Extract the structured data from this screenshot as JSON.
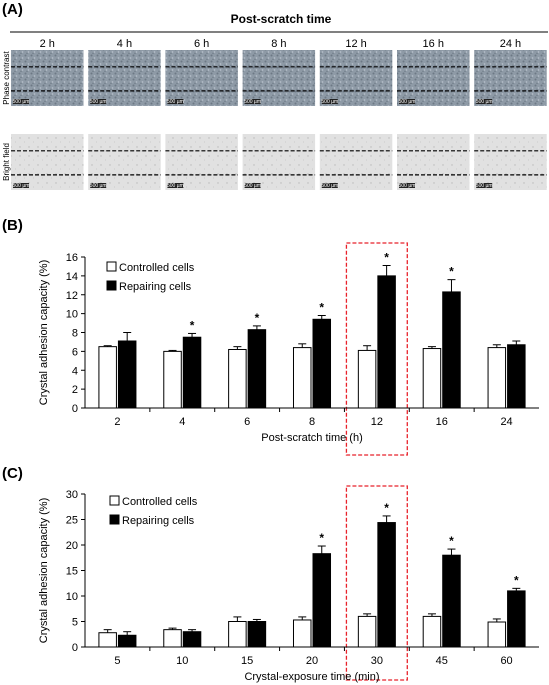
{
  "panel_a": {
    "letter": "(A)",
    "title": "Post-scratch time",
    "columns": [
      "2 h",
      "4 h",
      "6 h",
      "8 h",
      "12 h",
      "16 h",
      "24 h"
    ],
    "rows": [
      "Phase contrast",
      "Bright field"
    ],
    "scale_bar": "500 µm"
  },
  "chart_data": [
    {
      "panel": "(B)",
      "type": "bar",
      "categories": [
        "2",
        "4",
        "6",
        "8",
        "12",
        "16",
        "24"
      ],
      "series": [
        {
          "name": "Controlled cells",
          "color": "#ffffff",
          "values": [
            6.5,
            6.0,
            6.2,
            6.4,
            6.1,
            6.3,
            6.4
          ],
          "errors": [
            0.1,
            0.1,
            0.3,
            0.4,
            0.5,
            0.2,
            0.3
          ]
        },
        {
          "name": "Repairing cells",
          "color": "#000000",
          "values": [
            7.1,
            7.5,
            8.3,
            9.4,
            14.0,
            12.3,
            6.7
          ],
          "errors": [
            0.9,
            0.4,
            0.4,
            0.4,
            1.1,
            1.3,
            0.4
          ]
        }
      ],
      "significant": [
        false,
        true,
        true,
        true,
        true,
        true,
        false
      ],
      "star_symbol": "*",
      "highlight_category": "12",
      "xlabel": "Post-scratch time (h)",
      "ylabel": "Crystal adhesion capacity (%)",
      "ylim": [
        0,
        16
      ],
      "yticks": [
        0,
        2,
        4,
        6,
        8,
        10,
        12,
        14,
        16
      ],
      "grid": false,
      "legend_position": "top-left"
    },
    {
      "panel": "(C)",
      "type": "bar",
      "categories": [
        "5",
        "10",
        "15",
        "20",
        "30",
        "45",
        "60"
      ],
      "series": [
        {
          "name": "Controlled cells",
          "color": "#ffffff",
          "values": [
            2.8,
            3.4,
            5.0,
            5.3,
            6.0,
            6.0,
            4.9
          ],
          "errors": [
            0.6,
            0.3,
            0.9,
            0.6,
            0.5,
            0.5,
            0.6
          ]
        },
        {
          "name": "Repairing cells",
          "color": "#000000",
          "values": [
            2.3,
            3.0,
            5.0,
            18.3,
            24.4,
            18.0,
            11.0
          ],
          "errors": [
            0.7,
            0.4,
            0.4,
            1.5,
            1.3,
            1.2,
            0.5
          ]
        }
      ],
      "significant": [
        false,
        false,
        false,
        true,
        true,
        true,
        true
      ],
      "star_symbol": "*",
      "highlight_category": "30",
      "xlabel": "Crystal-exposure time (min)",
      "ylabel": "Crystal adhesion capacity (%)",
      "ylim": [
        0,
        30
      ],
      "yticks": [
        0,
        5,
        10,
        15,
        20,
        25,
        30
      ],
      "grid": false,
      "legend_position": "top-left"
    }
  ]
}
